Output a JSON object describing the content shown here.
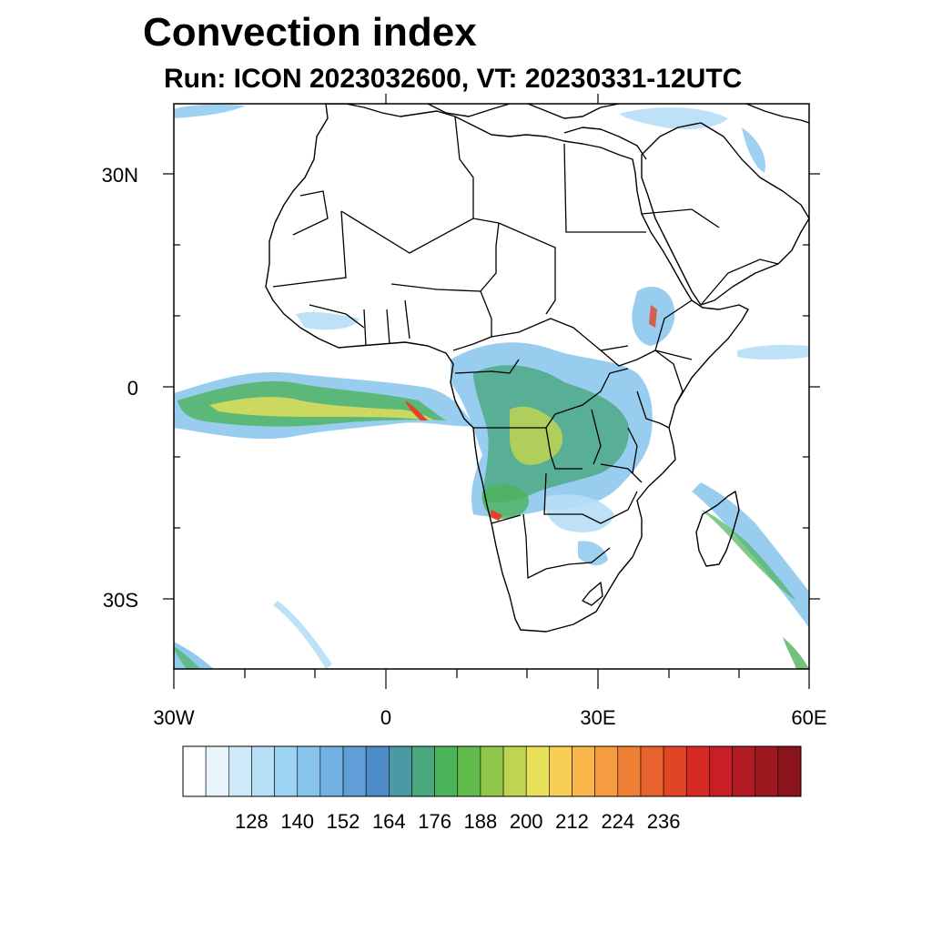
{
  "title": "Convection index",
  "subtitle": "Run: ICON 2023032600,  VT: 20230331-12UTC",
  "map": {
    "projection": "lat-lon",
    "lon_range": [
      -30,
      60
    ],
    "lat_range": [
      -40,
      40
    ],
    "lat_ticks": [
      {
        "value": 30,
        "label": "30N"
      },
      {
        "value": 0,
        "label": "0"
      },
      {
        "value": -30,
        "label": "30S"
      }
    ],
    "lon_ticks": [
      {
        "value": -30,
        "label": "30W"
      },
      {
        "value": 0,
        "label": "0"
      },
      {
        "value": 30,
        "label": "30E"
      },
      {
        "value": 60,
        "label": "60E"
      }
    ]
  },
  "colorbar": {
    "colors": [
      "#ffffff",
      "#e8f4fc",
      "#cfe9f8",
      "#b6def5",
      "#9dd3f2",
      "#86c4ec",
      "#72b1e2",
      "#5f9ed6",
      "#4d8cc9",
      "#4a9aa6",
      "#4aa77e",
      "#4db35a",
      "#62bb4a",
      "#90c74c",
      "#bfd451",
      "#e9e15a",
      "#f7cf55",
      "#f8b64b",
      "#f59c40",
      "#ef7f35",
      "#e7622c",
      "#e04526",
      "#d72a25",
      "#c81f26",
      "#b31b24",
      "#9e1820",
      "#8a141c"
    ],
    "labels": [
      "128",
      "140",
      "152",
      "164",
      "176",
      "188",
      "200",
      "212",
      "224",
      "236"
    ]
  }
}
